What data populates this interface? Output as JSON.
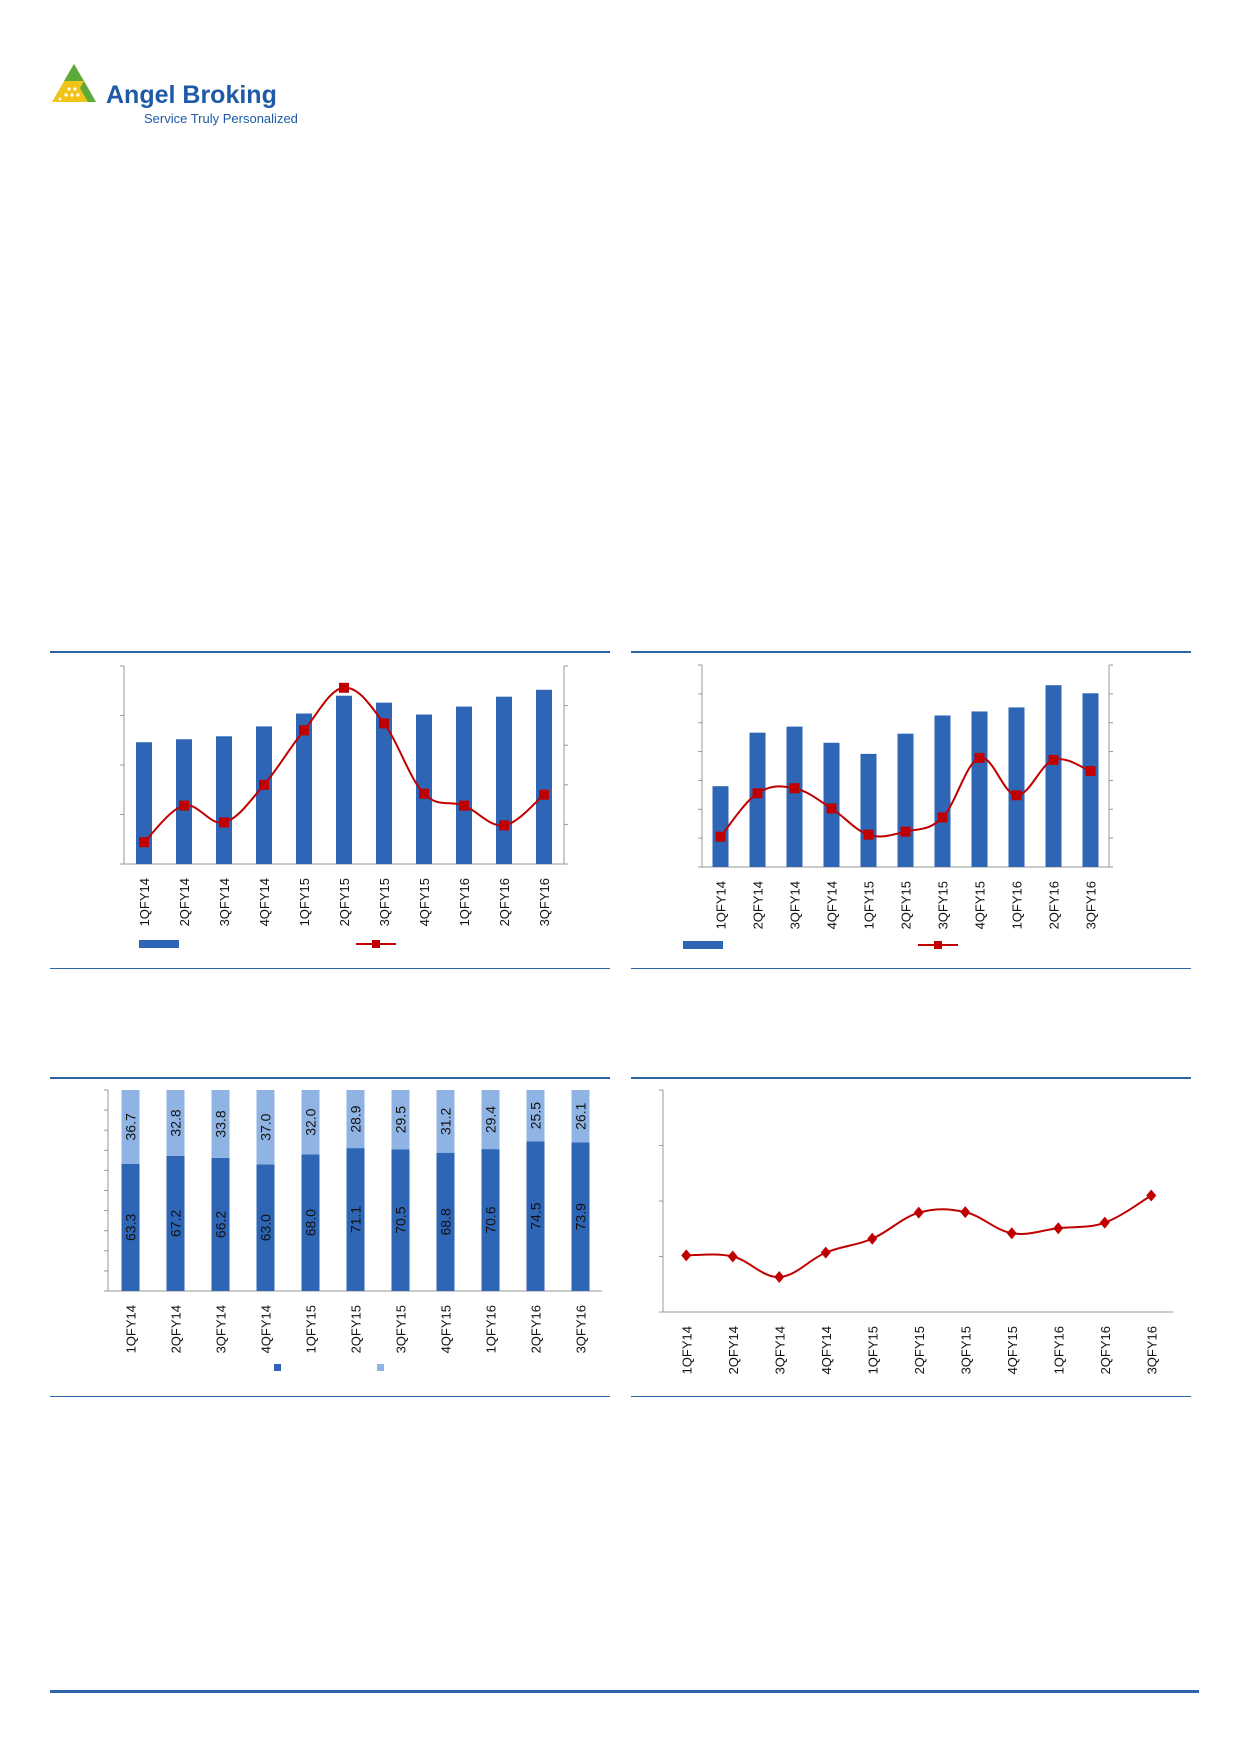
{
  "header": {
    "brand_name": "Angel Broking",
    "tagline": "Service Truly Personalized",
    "brand_color": "#1f5aa6",
    "logo_colors": [
      "#5aab3c",
      "#f2c318"
    ]
  },
  "colors": {
    "accent": "#2e65a8",
    "bar_dark": "#2f65b5",
    "bar_light": "#8fb4e3",
    "line_red": "#c00000"
  },
  "chart_data": [
    {
      "type": "bar",
      "categories": [
        "1QFY14",
        "2QFY14",
        "3QFY14",
        "4QFY14",
        "1QFY15",
        "2QFY15",
        "3QFY15",
        "4QFY15",
        "1QFY16",
        "2QFY16",
        "3QFY16"
      ],
      "series": [
        {
          "values": [
            61.5,
            63,
            64.5,
            69.5,
            76,
            85,
            81.5,
            75.5,
            79.5,
            84.5,
            88
          ]
        },
        {
          "values": [
            11,
            29.5,
            21,
            40,
            67.5,
            89,
            71,
            35.5,
            29.5,
            19.5,
            35
          ]
        }
      ],
      "legend": "bottom",
      "grid": false
    },
    {
      "type": "bar",
      "categories": [
        "1QFY14",
        "2QFY14",
        "3QFY14",
        "4QFY14",
        "1QFY15",
        "2QFY15",
        "3QFY15",
        "4QFY15",
        "1QFY16",
        "2QFY16",
        "3QFY16"
      ],
      "series": [
        {
          "values": [
            40,
            66.5,
            69.5,
            61.5,
            56,
            66,
            75,
            77,
            79,
            90,
            86
          ]
        },
        {
          "values": [
            15,
            36.5,
            39,
            29,
            16,
            17.5,
            24.5,
            54,
            35.5,
            53,
            47.5
          ]
        }
      ],
      "legend": "bottom",
      "grid": false
    },
    {
      "type": "bar",
      "stacked": true,
      "categories": [
        "1QFY14",
        "2QFY14",
        "3QFY14",
        "4QFY14",
        "1QFY15",
        "2QFY15",
        "3QFY15",
        "4QFY15",
        "1QFY16",
        "2QFY16",
        "3QFY16"
      ],
      "series": [
        {
          "values": [
            63.3,
            67.2,
            66.2,
            63.0,
            68.0,
            71.1,
            70.5,
            68.8,
            70.6,
            74.5,
            73.9
          ],
          "labels": [
            "63.3",
            "67.2",
            "66.2",
            "63.0",
            "68.0",
            "71.1",
            "70.5",
            "68.8",
            "70.6",
            "74.5",
            "73.9"
          ]
        },
        {
          "values": [
            36.7,
            32.8,
            33.8,
            37.0,
            32.0,
            28.9,
            29.5,
            31.2,
            29.4,
            25.5,
            26.1
          ],
          "labels": [
            "36.7",
            "32.8",
            "33.8",
            "37.0",
            "32.0",
            "28.9",
            "29.5",
            "31.2",
            "29.4",
            "25.5",
            "26.1"
          ]
        }
      ],
      "ylim": [
        0,
        100
      ],
      "legend": "bottom",
      "grid": false
    },
    {
      "type": "line",
      "categories": [
        "1QFY14",
        "2QFY14",
        "3QFY14",
        "4QFY14",
        "1QFY15",
        "2QFY15",
        "3QFY15",
        "4QFY15",
        "1QFY16",
        "2QFY16",
        "3QFY16"
      ],
      "series": [
        {
          "values": [
            1.02,
            1.0,
            0.63,
            1.07,
            1.32,
            1.79,
            1.8,
            1.42,
            1.51,
            1.61,
            2.1
          ]
        }
      ],
      "ylim": [
        0,
        4
      ],
      "grid": false
    }
  ]
}
